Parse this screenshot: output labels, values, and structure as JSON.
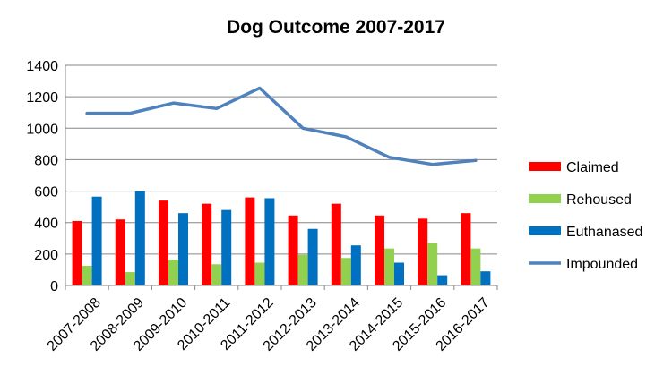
{
  "chart_data": {
    "type": "bar",
    "title": "Dog Outcome 2007-2017",
    "xlabel": "",
    "ylabel": "",
    "ylim": [
      0,
      1400
    ],
    "yticks": [
      0,
      200,
      400,
      600,
      800,
      1000,
      1200,
      1400
    ],
    "grid": true,
    "legend_position": "right",
    "categories": [
      "2007-2008",
      "2008-2009",
      "2009-2010",
      "2010-2011",
      "2011-2012",
      "2012-2013",
      "2013-2014",
      "2014-2015",
      "2015-2016",
      "2016-2017"
    ],
    "series": [
      {
        "name": "Claimed",
        "type": "bar",
        "color": "#ff0000",
        "values": [
          410,
          420,
          540,
          520,
          560,
          445,
          520,
          445,
          425,
          460
        ]
      },
      {
        "name": "Rehoused",
        "type": "bar",
        "color": "#92d050",
        "values": [
          125,
          85,
          165,
          135,
          145,
          195,
          175,
          235,
          270,
          235
        ]
      },
      {
        "name": "Euthanased",
        "type": "bar",
        "color": "#0070c0",
        "values": [
          565,
          600,
          460,
          480,
          555,
          360,
          255,
          145,
          65,
          90
        ]
      },
      {
        "name": "Impounded",
        "type": "line",
        "color": "#4f81bd",
        "values": [
          1095,
          1095,
          1160,
          1125,
          1255,
          1000,
          945,
          815,
          770,
          795
        ]
      }
    ]
  }
}
